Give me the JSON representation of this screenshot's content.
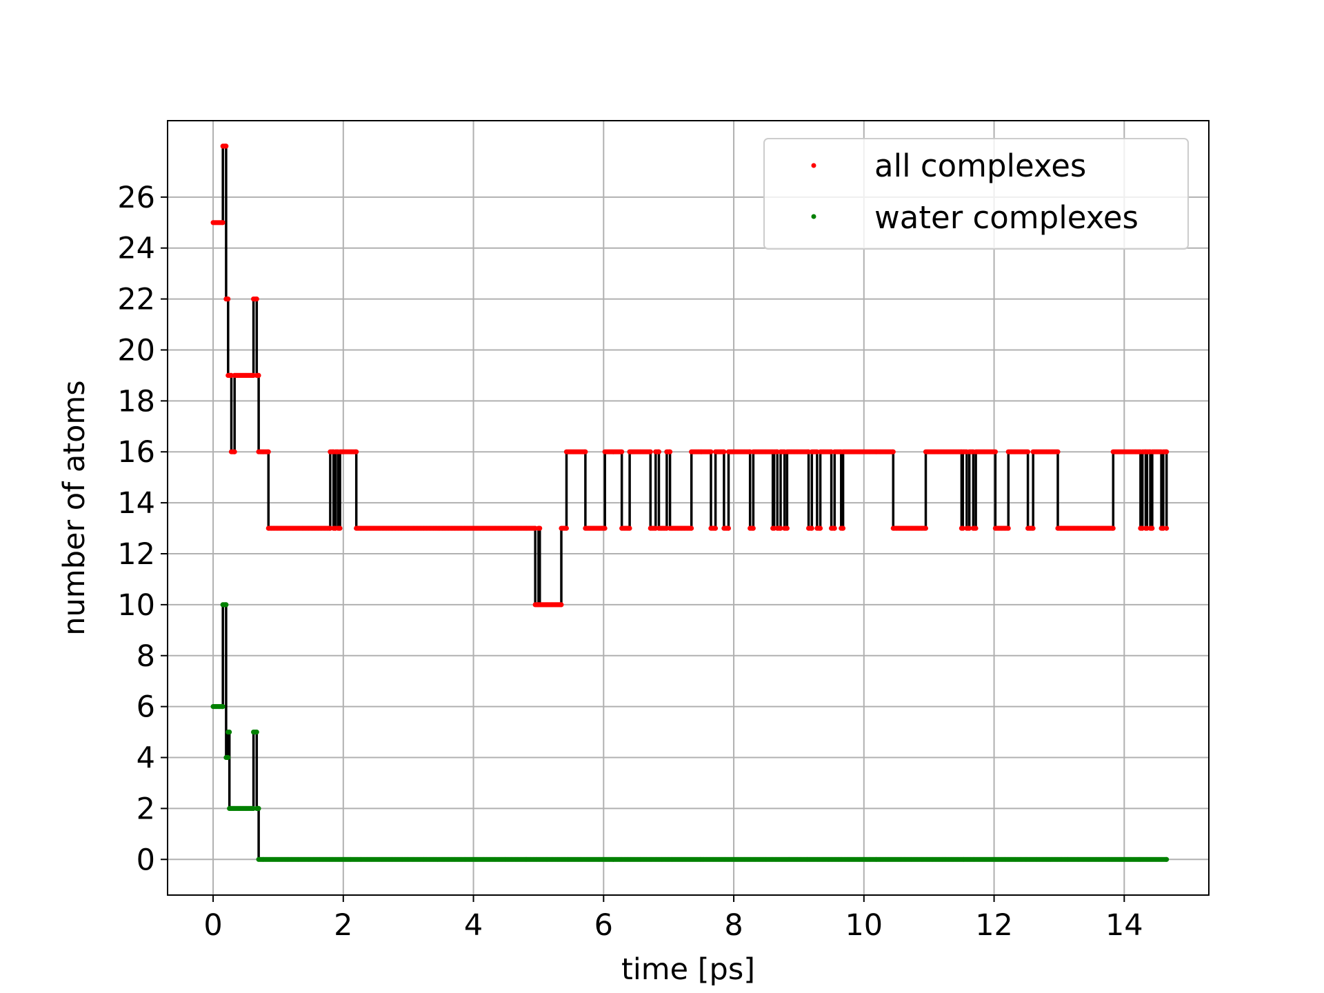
{
  "chart_data": {
    "type": "line",
    "xlabel": "time [ps]",
    "ylabel": "number of atoms",
    "xlim": [
      -0.7,
      15.3
    ],
    "ylim": [
      -1.4,
      29.0
    ],
    "xticks": [
      0,
      2,
      4,
      6,
      8,
      10,
      12,
      14
    ],
    "yticks": [
      0,
      2,
      4,
      6,
      8,
      10,
      12,
      14,
      16,
      18,
      20,
      22,
      24,
      26
    ],
    "grid": true,
    "legend_position": "top-right",
    "connector_color": "#000000",
    "series": [
      {
        "name": "all complexes",
        "color": "#ff0000",
        "step_data": [
          [
            0.0,
            25
          ],
          [
            0.15,
            28
          ],
          [
            0.2,
            22
          ],
          [
            0.23,
            19
          ],
          [
            0.28,
            16
          ],
          [
            0.33,
            19
          ],
          [
            0.62,
            22
          ],
          [
            0.67,
            19
          ],
          [
            0.7,
            16
          ],
          [
            0.85,
            13
          ],
          [
            1.8,
            16
          ],
          [
            1.85,
            13
          ],
          [
            1.88,
            16
          ],
          [
            1.92,
            13
          ],
          [
            1.95,
            16
          ],
          [
            2.2,
            13
          ],
          [
            4.95,
            10
          ],
          [
            5.0,
            13
          ],
          [
            5.02,
            10
          ],
          [
            5.35,
            13
          ],
          [
            5.43,
            16
          ],
          [
            5.72,
            13
          ],
          [
            6.02,
            16
          ],
          [
            6.28,
            13
          ],
          [
            6.4,
            16
          ],
          [
            6.72,
            13
          ],
          [
            6.8,
            16
          ],
          [
            6.85,
            13
          ],
          [
            6.97,
            16
          ],
          [
            7.02,
            13
          ],
          [
            7.35,
            16
          ],
          [
            7.65,
            13
          ],
          [
            7.72,
            16
          ],
          [
            7.85,
            13
          ],
          [
            7.92,
            16
          ],
          [
            8.25,
            13
          ],
          [
            8.3,
            16
          ],
          [
            8.6,
            13
          ],
          [
            8.62,
            16
          ],
          [
            8.67,
            13
          ],
          [
            8.72,
            16
          ],
          [
            8.78,
            13
          ],
          [
            8.82,
            16
          ],
          [
            9.15,
            13
          ],
          [
            9.2,
            16
          ],
          [
            9.28,
            13
          ],
          [
            9.33,
            16
          ],
          [
            9.5,
            13
          ],
          [
            9.55,
            16
          ],
          [
            9.65,
            13
          ],
          [
            9.68,
            16
          ],
          [
            10.45,
            13
          ],
          [
            10.95,
            16
          ],
          [
            11.5,
            13
          ],
          [
            11.52,
            16
          ],
          [
            11.58,
            13
          ],
          [
            11.62,
            16
          ],
          [
            11.68,
            13
          ],
          [
            11.72,
            16
          ],
          [
            12.02,
            13
          ],
          [
            12.22,
            16
          ],
          [
            12.52,
            13
          ],
          [
            12.6,
            16
          ],
          [
            12.98,
            13
          ],
          [
            13.83,
            16
          ],
          [
            14.25,
            13
          ],
          [
            14.28,
            16
          ],
          [
            14.33,
            13
          ],
          [
            14.35,
            16
          ],
          [
            14.4,
            13
          ],
          [
            14.43,
            16
          ],
          [
            14.57,
            13
          ],
          [
            14.6,
            16
          ],
          [
            14.65,
            13
          ]
        ],
        "end_x": 14.65
      },
      {
        "name": "water complexes",
        "color": "#008000",
        "step_data": [
          [
            0.0,
            6
          ],
          [
            0.15,
            10
          ],
          [
            0.2,
            4
          ],
          [
            0.23,
            5
          ],
          [
            0.25,
            2
          ],
          [
            0.62,
            5
          ],
          [
            0.67,
            2
          ],
          [
            0.7,
            0
          ]
        ],
        "end_x": 14.65
      }
    ]
  }
}
